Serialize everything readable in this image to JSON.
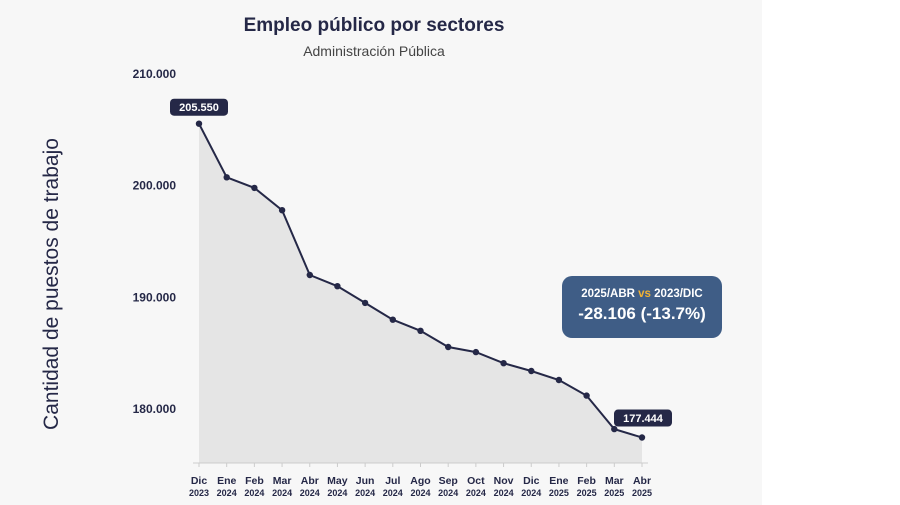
{
  "chart_data": {
    "type": "area",
    "title": "Empleo público por sectores",
    "subtitle": "Administración Pública",
    "ylabel": "Cantidad de puestos de trabajo",
    "xlabel": "",
    "ylim": [
      175000,
      210000
    ],
    "yticks": [
      180000,
      190000,
      200000,
      210000
    ],
    "ytick_labels": [
      "180.000",
      "190.000",
      "200.000",
      "210.000"
    ],
    "categories": [
      {
        "month": "Dic",
        "year": "2023"
      },
      {
        "month": "Ene",
        "year": "2024"
      },
      {
        "month": "Feb",
        "year": "2024"
      },
      {
        "month": "Mar",
        "year": "2024"
      },
      {
        "month": "Abr",
        "year": "2024"
      },
      {
        "month": "May",
        "year": "2024"
      },
      {
        "month": "Jun",
        "year": "2024"
      },
      {
        "month": "Jul",
        "year": "2024"
      },
      {
        "month": "Ago",
        "year": "2024"
      },
      {
        "month": "Sep",
        "year": "2024"
      },
      {
        "month": "Oct",
        "year": "2024"
      },
      {
        "month": "Nov",
        "year": "2024"
      },
      {
        "month": "Dic",
        "year": "2024"
      },
      {
        "month": "Ene",
        "year": "2025"
      },
      {
        "month": "Feb",
        "year": "2025"
      },
      {
        "month": "Mar",
        "year": "2025"
      },
      {
        "month": "Abr",
        "year": "2025"
      }
    ],
    "values": [
      205550,
      200750,
      199800,
      197800,
      192000,
      191000,
      189500,
      188000,
      187000,
      185550,
      185100,
      184100,
      183400,
      182600,
      181200,
      178200,
      177444
    ],
    "data_labels": [
      {
        "index": 0,
        "text": "205.550"
      },
      {
        "index": 16,
        "text": "177.444"
      }
    ],
    "colors": {
      "line": "#252847",
      "area": "#e5e5e5",
      "panel": "#f7f7f7",
      "callout": "#3f5d86",
      "accent": "#f2b233"
    }
  },
  "callout": {
    "left": "2025/ABR",
    "vs": "vs",
    "right": "2023/DIC",
    "value": "-28.106 (-13.7%)"
  }
}
